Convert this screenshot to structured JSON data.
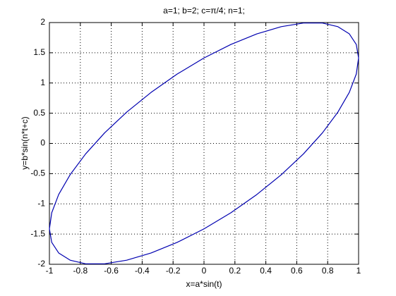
{
  "chart_data": {
    "type": "line",
    "title": "a=1; b=2; c=π/4; n=1;",
    "x_label": "x=a*sin(t)",
    "y_label": "y=b*sin(n*t+c)",
    "x": [
      0,
      0.174,
      0.342,
      0.5,
      0.643,
      0.766,
      0.866,
      0.94,
      0.985,
      1,
      0.985,
      0.94,
      0.866,
      0.766,
      0.643,
      0.5,
      0.342,
      0.174,
      0,
      -0.174,
      -0.342,
      -0.5,
      -0.643,
      -0.766,
      -0.866,
      -0.94,
      -0.985,
      -1,
      -0.985,
      -0.94,
      -0.866,
      -0.766,
      -0.643,
      -0.5,
      -0.342,
      -0.174,
      0
    ],
    "series": [
      {
        "color": "#0000b0",
        "values": [
          1.414,
          1.638,
          1.813,
          1.932,
          1.992,
          1.992,
          1.932,
          1.813,
          1.638,
          1.414,
          1.147,
          0.845,
          0.518,
          0.174,
          -0.174,
          -0.518,
          -0.845,
          -1.147,
          -1.414,
          -1.638,
          -1.813,
          -1.932,
          -1.992,
          -1.992,
          -1.932,
          -1.813,
          -1.638,
          -1.414,
          -1.147,
          -0.845,
          -0.518,
          -0.174,
          0.174,
          0.518,
          0.845,
          1.147,
          1.414
        ]
      }
    ],
    "xlim": [
      -1,
      1
    ],
    "ylim": [
      -2,
      2
    ],
    "xticks": [
      -1,
      -0.8,
      -0.6,
      -0.4,
      -0.2,
      0,
      0.2,
      0.4,
      0.6,
      0.8,
      1
    ],
    "yticks": [
      -2,
      -1.5,
      -1,
      -0.5,
      0,
      0.5,
      1,
      1.5,
      2
    ],
    "grid": true
  }
}
